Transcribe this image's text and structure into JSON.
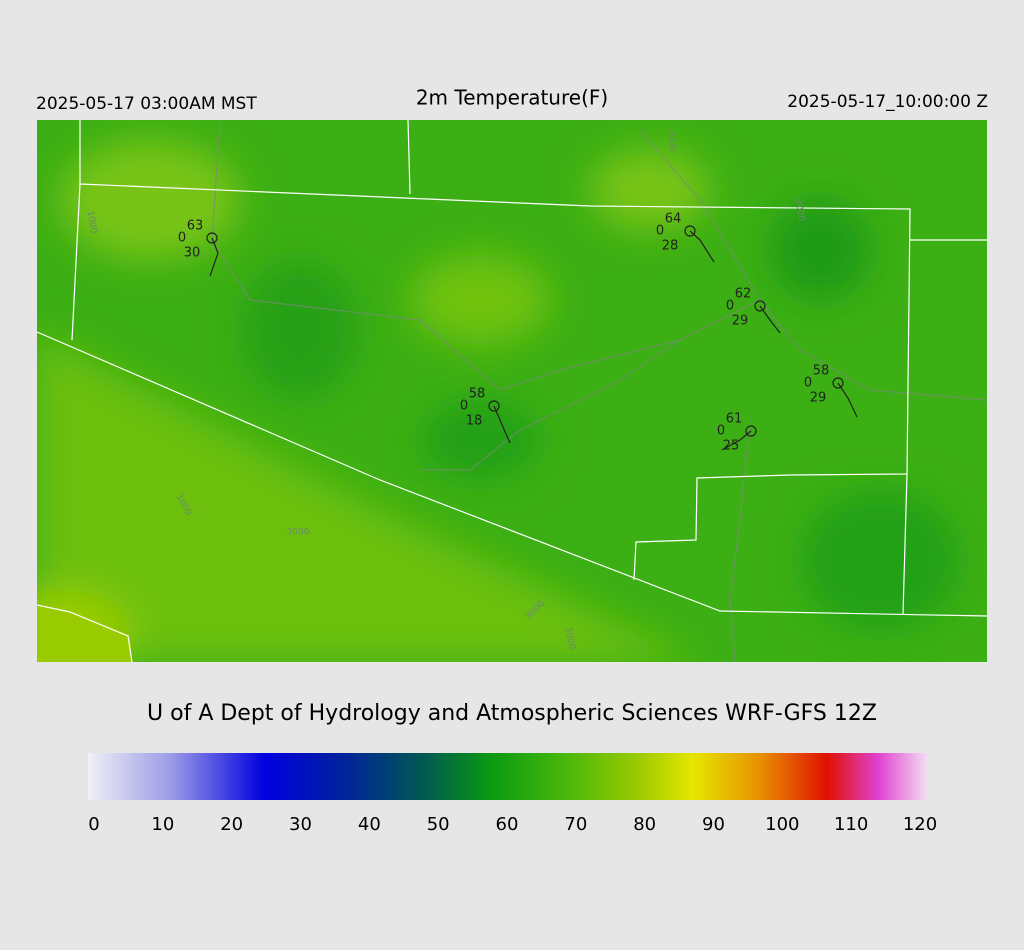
{
  "header": {
    "left": "2025-05-17 03:00AM MST",
    "title": "2m Temperature(F)",
    "right": "2025-05-17_10:00:00 Z"
  },
  "stations": [
    {
      "temperature": 63,
      "cloud": 0,
      "dewpoint": 30
    },
    {
      "temperature": 64,
      "cloud": 0,
      "dewpoint": 28
    },
    {
      "temperature": 62,
      "cloud": 0,
      "dewpoint": 29
    },
    {
      "temperature": 58,
      "cloud": 0,
      "dewpoint": 29
    },
    {
      "temperature": 58,
      "cloud": 0,
      "dewpoint": 18
    },
    {
      "temperature": 61,
      "cloud": 0,
      "dewpoint": 25
    }
  ],
  "contour_labels": [
    "1000",
    "1000",
    "3000",
    "3000",
    "3000",
    "3000",
    "3000"
  ],
  "credit": "U of A Dept of Hydrology and Atmospheric Sciences WRF-GFS 12Z",
  "colorbar": {
    "range": [
      0,
      120
    ],
    "ticks": [
      0,
      10,
      20,
      30,
      40,
      50,
      60,
      70,
      80,
      90,
      100,
      110,
      120
    ]
  }
}
